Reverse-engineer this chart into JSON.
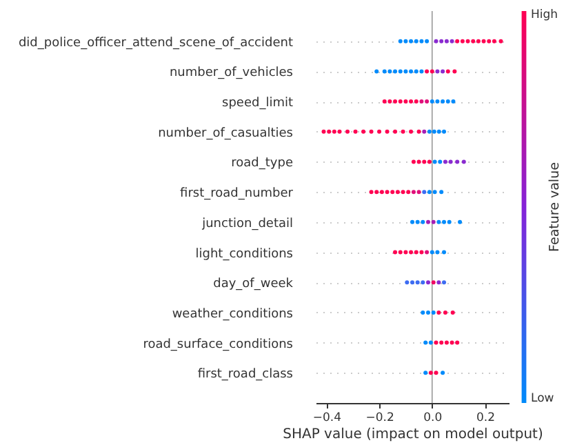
{
  "chart_data": {
    "type": "scatter",
    "orientation": "horizontal",
    "xlabel": "SHAP value (impact on model output)",
    "clabel": "Feature value",
    "annotations": [
      "High",
      "Low"
    ],
    "categories": [
      "did_police_officer_attend_scene_of_accident",
      "number_of_vehicles",
      "speed_limit",
      "number_of_casualties",
      "road_type",
      "first_road_number",
      "junction_detail",
      "light_conditions",
      "day_of_week",
      "weather_conditions",
      "road_surface_conditions",
      "first_road_class"
    ],
    "series": [
      {
        "x": [
          "did_police_officer_attend_scene_of_accident",
          "did_police_officer_attend_scene_of_accident",
          "did_police_officer_attend_scene_of_accident",
          "did_police_officer_attend_scene_of_accident",
          "did_police_officer_attend_scene_of_accident",
          "did_police_officer_attend_scene_of_accident",
          "did_police_officer_attend_scene_of_accident",
          "did_police_officer_attend_scene_of_accident",
          "did_police_officer_attend_scene_of_accident",
          "did_police_officer_attend_scene_of_accident",
          "did_police_officer_attend_scene_of_accident",
          "did_police_officer_attend_scene_of_accident",
          "did_police_officer_attend_scene_of_accident",
          "did_police_officer_attend_scene_of_accident",
          "did_police_officer_attend_scene_of_accident",
          "did_police_officer_attend_scene_of_accident",
          "did_police_officer_attend_scene_of_accident",
          "did_police_officer_attend_scene_of_accident",
          "did_police_officer_attend_scene_of_accident"
        ],
        "values": [
          -0.12,
          -0.1,
          -0.08,
          -0.06,
          -0.04,
          -0.02,
          0.015,
          0.035,
          0.055,
          0.075,
          0.095,
          0.115,
          0.135,
          0.155,
          0.175,
          0.195,
          0.215,
          0.235,
          0.26
        ],
        "colors": [
          "#008bfb",
          "#008bfb",
          "#008bfb",
          "#008bfb",
          "#008bfb",
          "#008bfb",
          "#8a2bd0",
          "#8a2bd0",
          "#8a2bd0",
          "#8a2bd0",
          "#ff0052",
          "#ff0052",
          "#ff0052",
          "#ff0052",
          "#ff0052",
          "#ff0052",
          "#ff0052",
          "#ff0052",
          "#ff0052"
        ]
      },
      {
        "x": [
          "number_of_vehicles",
          "number_of_vehicles",
          "number_of_vehicles",
          "number_of_vehicles",
          "number_of_vehicles",
          "number_of_vehicles",
          "number_of_vehicles",
          "number_of_vehicles",
          "number_of_vehicles",
          "number_of_vehicles",
          "number_of_vehicles",
          "number_of_vehicles",
          "number_of_vehicles",
          "number_of_vehicles",
          "number_of_vehicles"
        ],
        "values": [
          -0.21,
          -0.18,
          -0.16,
          -0.14,
          -0.12,
          -0.1,
          -0.08,
          -0.06,
          -0.04,
          -0.02,
          0.0,
          0.02,
          0.04,
          0.06,
          0.085
        ],
        "colors": [
          "#008bfb",
          "#008bfb",
          "#008bfb",
          "#008bfb",
          "#008bfb",
          "#008bfb",
          "#008bfb",
          "#008bfb",
          "#008bfb",
          "#ff0052",
          "#ff0052",
          "#8a2bd0",
          "#8a2bd0",
          "#ff0052",
          "#ff0052"
        ]
      },
      {
        "x": [
          "speed_limit",
          "speed_limit",
          "speed_limit",
          "speed_limit",
          "speed_limit",
          "speed_limit",
          "speed_limit",
          "speed_limit",
          "speed_limit",
          "speed_limit",
          "speed_limit",
          "speed_limit",
          "speed_limit",
          "speed_limit"
        ],
        "values": [
          -0.18,
          -0.16,
          -0.14,
          -0.12,
          -0.1,
          -0.08,
          -0.06,
          -0.04,
          -0.02,
          0.0,
          0.02,
          0.04,
          0.06,
          0.08
        ],
        "colors": [
          "#ff0052",
          "#ff0052",
          "#ff0052",
          "#ff0052",
          "#ff0052",
          "#ff0052",
          "#ff0052",
          "#e0107a",
          "#e0107a",
          "#008bfb",
          "#008bfb",
          "#008bfb",
          "#008bfb",
          "#008bfb"
        ]
      },
      {
        "x": [
          "number_of_casualties",
          "number_of_casualties",
          "number_of_casualties",
          "number_of_casualties",
          "number_of_casualties",
          "number_of_casualties",
          "number_of_casualties",
          "number_of_casualties",
          "number_of_casualties",
          "number_of_casualties",
          "number_of_casualties",
          "number_of_casualties",
          "number_of_casualties",
          "number_of_casualties",
          "number_of_casualties",
          "number_of_casualties",
          "number_of_casualties",
          "number_of_casualties",
          "number_of_casualties"
        ],
        "values": [
          -0.41,
          -0.39,
          -0.37,
          -0.35,
          -0.32,
          -0.29,
          -0.26,
          -0.23,
          -0.2,
          -0.17,
          -0.14,
          -0.11,
          -0.08,
          -0.05,
          -0.03,
          -0.01,
          0.008,
          0.026,
          0.045
        ],
        "colors": [
          "#ff0052",
          "#ff0052",
          "#ff0052",
          "#ff0052",
          "#ff0052",
          "#ff0052",
          "#ff0052",
          "#ff0052",
          "#ff0052",
          "#ff0052",
          "#ff0052",
          "#ff0052",
          "#ff0052",
          "#ff0052",
          "#a61fb5",
          "#008bfb",
          "#008bfb",
          "#008bfb",
          "#008bfb"
        ]
      },
      {
        "x": [
          "road_type",
          "road_type",
          "road_type",
          "road_type",
          "road_type",
          "road_type",
          "road_type",
          "road_type",
          "road_type",
          "road_type"
        ],
        "values": [
          -0.07,
          -0.05,
          -0.03,
          -0.01,
          0.01,
          0.03,
          0.05,
          0.07,
          0.095,
          0.12
        ],
        "colors": [
          "#ff0052",
          "#ff0052",
          "#ff0052",
          "#ff0052",
          "#008bfb",
          "#008bfb",
          "#8a2bd0",
          "#8a2bd0",
          "#8a2bd0",
          "#8a2bd0"
        ]
      },
      {
        "x": [
          "first_road_number",
          "first_road_number",
          "first_road_number",
          "first_road_number",
          "first_road_number",
          "first_road_number",
          "first_road_number",
          "first_road_number",
          "first_road_number",
          "first_road_number",
          "first_road_number",
          "first_road_number",
          "first_road_number",
          "first_road_number"
        ],
        "values": [
          -0.23,
          -0.21,
          -0.19,
          -0.17,
          -0.15,
          -0.13,
          -0.11,
          -0.09,
          -0.07,
          -0.05,
          -0.03,
          -0.01,
          0.01,
          0.035
        ],
        "colors": [
          "#ff0052",
          "#ff0052",
          "#ff0052",
          "#ff0052",
          "#ff0052",
          "#ff0052",
          "#ff0052",
          "#ff0052",
          "#e0107a",
          "#e0107a",
          "#3d6cf2",
          "#008bfb",
          "#008bfb",
          "#008bfb"
        ]
      },
      {
        "x": [
          "junction_detail",
          "junction_detail",
          "junction_detail",
          "junction_detail",
          "junction_detail",
          "junction_detail",
          "junction_detail",
          "junction_detail",
          "junction_detail"
        ],
        "values": [
          -0.075,
          -0.055,
          -0.035,
          -0.015,
          0.005,
          0.025,
          0.045,
          0.065,
          0.105
        ],
        "colors": [
          "#008bfb",
          "#008bfb",
          "#008bfb",
          "#a61fb5",
          "#a61fb5",
          "#008bfb",
          "#008bfb",
          "#008bfb",
          "#008bfb"
        ]
      },
      {
        "x": [
          "light_conditions",
          "light_conditions",
          "light_conditions",
          "light_conditions",
          "light_conditions",
          "light_conditions",
          "light_conditions",
          "light_conditions",
          "light_conditions",
          "light_conditions"
        ],
        "values": [
          -0.14,
          -0.12,
          -0.1,
          -0.08,
          -0.06,
          -0.04,
          -0.02,
          0.0,
          0.02,
          0.045
        ],
        "colors": [
          "#ff0052",
          "#ff0052",
          "#ff0052",
          "#ff0052",
          "#ff0052",
          "#ff0052",
          "#e0107a",
          "#008bfb",
          "#008bfb",
          "#008bfb"
        ]
      },
      {
        "x": [
          "day_of_week",
          "day_of_week",
          "day_of_week",
          "day_of_week",
          "day_of_week",
          "day_of_week",
          "day_of_week",
          "day_of_week"
        ],
        "values": [
          -0.095,
          -0.075,
          -0.055,
          -0.035,
          -0.015,
          0.005,
          0.025,
          0.045
        ],
        "colors": [
          "#3d6cf2",
          "#3d6cf2",
          "#3d6cf2",
          "#3d6cf2",
          "#8a2bd0",
          "#f00a64",
          "#8a2bd0",
          "#3d6cf2"
        ]
      },
      {
        "x": [
          "weather_conditions",
          "weather_conditions",
          "weather_conditions",
          "weather_conditions",
          "weather_conditions",
          "weather_conditions"
        ],
        "values": [
          -0.035,
          -0.015,
          0.005,
          0.025,
          0.05,
          0.078
        ],
        "colors": [
          "#008bfb",
          "#008bfb",
          "#008bfb",
          "#ff0052",
          "#ff0052",
          "#ff0052"
        ]
      },
      {
        "x": [
          "road_surface_conditions",
          "road_surface_conditions",
          "road_surface_conditions",
          "road_surface_conditions",
          "road_surface_conditions",
          "road_surface_conditions",
          "road_surface_conditions"
        ],
        "values": [
          -0.025,
          -0.005,
          0.015,
          0.035,
          0.055,
          0.075,
          0.095
        ],
        "colors": [
          "#008bfb",
          "#008bfb",
          "#ff0052",
          "#ff0052",
          "#ff0052",
          "#ff0052",
          "#ff0052"
        ]
      },
      {
        "x": [
          "first_road_class",
          "first_road_class",
          "first_road_class",
          "first_road_class"
        ],
        "values": [
          -0.025,
          -0.005,
          0.015,
          0.04
        ],
        "colors": [
          "#008bfb",
          "#ff0052",
          "#ff0052",
          "#008bfb"
        ]
      }
    ],
    "xlim": [
      -0.44,
      0.29
    ],
    "xticks": [
      {
        "value": -0.4,
        "label": "−0.4"
      },
      {
        "value": -0.2,
        "label": "−0.2"
      },
      {
        "value": 0,
        "label": "0.0"
      },
      0.2
    ],
    "ref_lines": [
      {
        "axis": "x",
        "value": 0,
        "color": "#999999"
      }
    ],
    "grid": "y",
    "marker": "circle"
  }
}
